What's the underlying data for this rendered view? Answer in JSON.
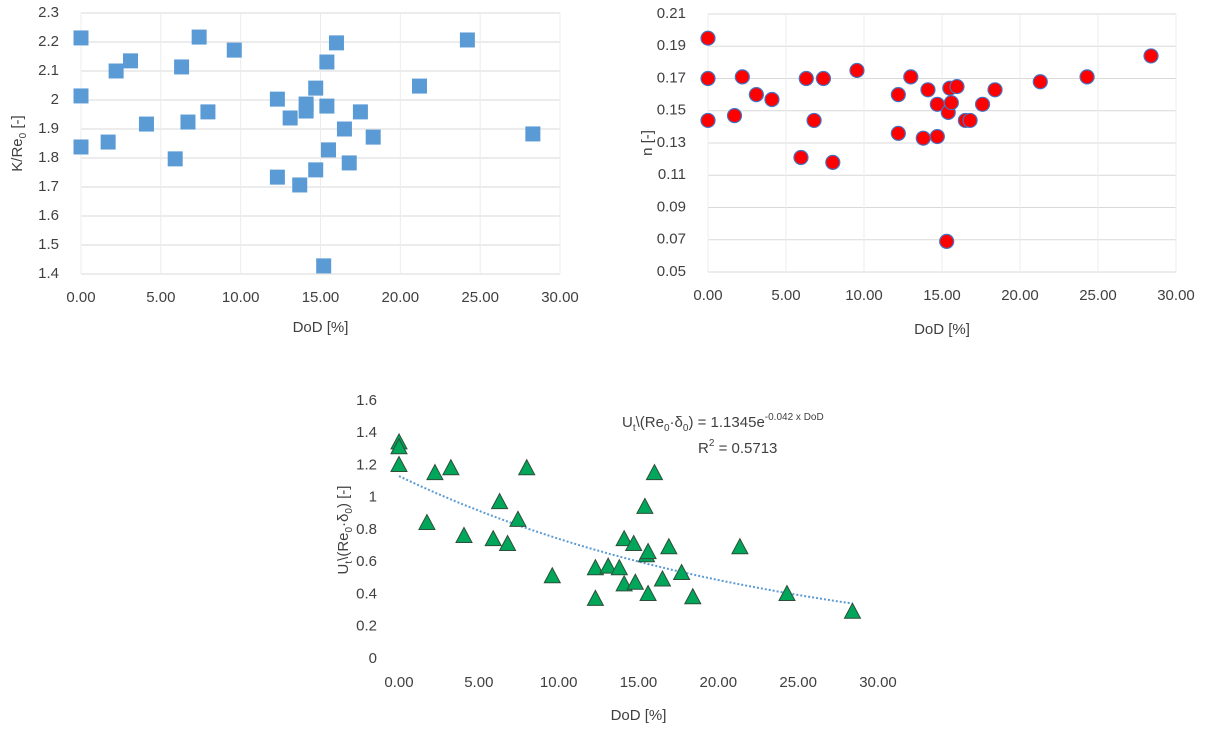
{
  "chart_data": [
    {
      "type": "scatter",
      "marker": "square",
      "grid": true,
      "xlabel_parts": [
        {
          "text": "DoD [%]"
        }
      ],
      "ylabel_parts": [
        {
          "text": "K/Re"
        },
        {
          "text": "0",
          "shift": "sub"
        },
        {
          "text": " [-]"
        }
      ],
      "xlim": [
        0,
        30
      ],
      "xticks": [
        {
          "value": 0,
          "label": "0.00"
        },
        {
          "value": 5,
          "label": "5.00"
        },
        {
          "value": 10,
          "label": "10.00"
        },
        {
          "value": 15,
          "label": "15.00"
        },
        {
          "value": 20,
          "label": "20.00"
        },
        {
          "value": 25,
          "label": "25.00"
        },
        {
          "value": 30,
          "label": "30.00"
        }
      ],
      "ylim": [
        1.4,
        2.3
      ],
      "yticks": [
        1.4,
        1.5,
        1.6,
        1.7,
        1.8,
        1.9,
        2,
        2.1,
        2.2,
        2.3
      ],
      "series": [
        {
          "color": "#5b9bd5",
          "stroke": "#5b9bd5",
          "x": [
            0,
            0,
            0,
            1.7,
            2.2,
            3.1,
            4.1,
            5.9,
            6.3,
            6.7,
            7.4,
            7.95,
            9.6,
            12.3,
            12.3,
            13.1,
            13.7,
            14.1,
            14.1,
            14.7,
            14.7,
            15.4,
            15.4,
            15.5,
            15.2,
            16.0,
            16.5,
            16.8,
            17.5,
            18.3,
            21.2,
            24.2,
            28.3
          ],
          "values": [
            2.214,
            2.014,
            1.838,
            1.855,
            2.1,
            2.135,
            1.917,
            1.797,
            2.114,
            1.924,
            2.217,
            1.959,
            2.172,
            2.003,
            1.734,
            1.938,
            1.707,
            1.986,
            1.962,
            2.041,
            1.759,
            2.131,
            1.979,
            1.828,
            1.428,
            2.197,
            1.9,
            1.783,
            1.959,
            1.872,
            2.048,
            2.207,
            1.883
          ]
        }
      ]
    },
    {
      "type": "scatter",
      "marker": "circle",
      "grid": true,
      "xlabel_parts": [
        {
          "text": "DoD [%]"
        }
      ],
      "ylabel_parts": [
        {
          "text": "n [-]"
        }
      ],
      "xlim": [
        0,
        30
      ],
      "xticks": [
        {
          "value": 0,
          "label": "0.00"
        },
        {
          "value": 5,
          "label": "5.00"
        },
        {
          "value": 10,
          "label": "10.00"
        },
        {
          "value": 15,
          "label": "15.00"
        },
        {
          "value": 20,
          "label": "20.00"
        },
        {
          "value": 25,
          "label": "25.00"
        },
        {
          "value": 30,
          "label": "30.00"
        }
      ],
      "ylim": [
        0.05,
        0.21
      ],
      "yticks": [
        0.05,
        0.07,
        0.09,
        0.11,
        0.13,
        0.15,
        0.17,
        0.19,
        0.21
      ],
      "series": [
        {
          "color": "#ff0000",
          "stroke": "#4472c4",
          "x": [
            0,
            0,
            0,
            1.7,
            2.2,
            3.1,
            4.1,
            5.96,
            6.3,
            6.8,
            7.4,
            8.0,
            9.55,
            12.2,
            12.2,
            13.0,
            13.8,
            14.1,
            14.7,
            14.7,
            15.3,
            15.4,
            15.5,
            15.6,
            15.96,
            16.5,
            16.8,
            17.6,
            18.4,
            21.3,
            24.3,
            28.4
          ],
          "values": [
            0.195,
            0.17,
            0.144,
            0.147,
            0.171,
            0.16,
            0.157,
            0.121,
            0.17,
            0.144,
            0.17,
            0.118,
            0.175,
            0.16,
            0.136,
            0.171,
            0.133,
            0.163,
            0.154,
            0.134,
            0.069,
            0.149,
            0.164,
            0.155,
            0.165,
            0.144,
            0.144,
            0.154,
            0.163,
            0.168,
            0.171,
            0.184
          ]
        }
      ]
    },
    {
      "type": "scatter",
      "marker": "triangle",
      "grid": false,
      "xlabel_parts": [
        {
          "text": "DoD [%]"
        }
      ],
      "ylabel_parts": [
        {
          "text": "U"
        },
        {
          "text": "t",
          "shift": "sub"
        },
        {
          "text": "\\(Re"
        },
        {
          "text": "0",
          "shift": "sub"
        },
        {
          "text": "·δ"
        },
        {
          "text": "0",
          "shift": "sub"
        },
        {
          "text": ") [-]"
        }
      ],
      "xlim": [
        0,
        30
      ],
      "xticks": [
        {
          "value": 0,
          "label": "0.00"
        },
        {
          "value": 5,
          "label": "5.00"
        },
        {
          "value": 10,
          "label": "10.00"
        },
        {
          "value": 15,
          "label": "15.00"
        },
        {
          "value": 20,
          "label": "20.00"
        },
        {
          "value": 25,
          "label": "25.00"
        },
        {
          "value": 30,
          "label": "30.00"
        }
      ],
      "ylim": [
        0,
        1.6
      ],
      "yticks": [
        0,
        0.2,
        0.4,
        0.6,
        0.8,
        1,
        1.2,
        1.4,
        1.6
      ],
      "series": [
        {
          "color": "#00a65a",
          "stroke": "#2e4e3a",
          "x": [
            0,
            0,
            0,
            1.75,
            2.25,
            3.25,
            4.07,
            5.9,
            6.3,
            6.8,
            7.45,
            8.0,
            9.6,
            12.3,
            12.3,
            13.1,
            13.8,
            14.1,
            14.1,
            14.7,
            14.8,
            15.4,
            15.5,
            15.6,
            15.6,
            16.0,
            16.5,
            16.9,
            17.7,
            18.4,
            21.35,
            24.3,
            28.4
          ],
          "values": [
            1.34,
            1.31,
            1.2,
            0.84,
            1.15,
            1.18,
            0.76,
            0.74,
            0.97,
            0.71,
            0.86,
            1.18,
            0.51,
            0.56,
            0.37,
            0.57,
            0.56,
            0.74,
            0.46,
            0.71,
            0.47,
            0.94,
            0.64,
            0.66,
            0.4,
            1.15,
            0.49,
            0.69,
            0.53,
            0.38,
            0.69,
            0.4,
            0.29
          ]
        }
      ],
      "trendline": {
        "color": "#5b9bd5",
        "a": 1.1345,
        "b": -0.042,
        "r2": 0.5713,
        "lhs_parts": [
          {
            "text": "U"
          },
          {
            "text": "t",
            "shift": "sub"
          },
          {
            "text": "\\(Re"
          },
          {
            "text": "0",
            "shift": "sub"
          },
          {
            "text": "·δ"
          },
          {
            "text": "0",
            "shift": "sub"
          },
          {
            "text": ") = "
          }
        ],
        "base": "e",
        "exponent_suffix": " x DoD",
        "r2_parts": [
          {
            "text": "R"
          },
          {
            "text": "2",
            "shift": "super"
          },
          {
            "text": " = "
          }
        ]
      }
    }
  ]
}
